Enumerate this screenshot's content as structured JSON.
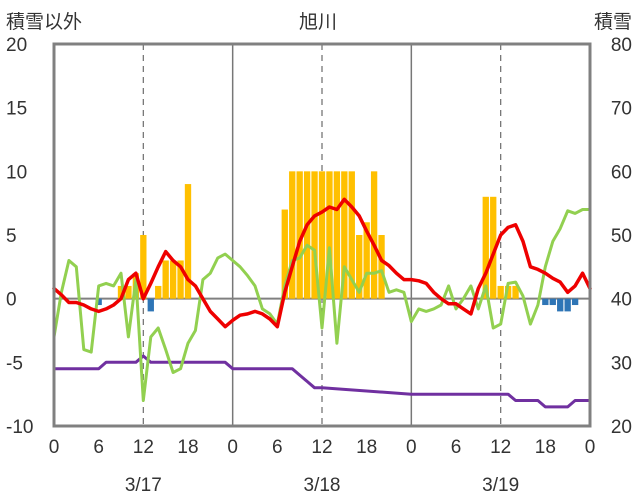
{
  "chart_data": {
    "type": "line",
    "title": "旭川",
    "left_axis_label": "積雪以外",
    "right_axis_label": "積雪",
    "left_ylim": [
      -10,
      20
    ],
    "left_yticks": [
      "20",
      "15",
      "10",
      "5",
      "0",
      "-5",
      "-10"
    ],
    "right_ylim": [
      20,
      80
    ],
    "right_yticks": [
      "80",
      "70",
      "60",
      "50",
      "40",
      "30",
      "20"
    ],
    "x_range_hours": [
      0,
      72
    ],
    "x_tick_labels": [
      "0",
      "6",
      "12",
      "18",
      "0",
      "6",
      "12",
      "18",
      "0",
      "6",
      "12",
      "18",
      "0"
    ],
    "date_labels": [
      "3/17",
      "3/18",
      "3/19"
    ],
    "grid": "dashed vertical lines at 12h of each day; solid vertical lines at day boundaries",
    "colors": {
      "bar_positive": "#FFC000",
      "bar_negative": "#2E75B6",
      "temperature_line": "#EE0000",
      "green_line": "#92D050",
      "snow_depth_line": "#7030A0",
      "frame": "#808080"
    },
    "series": [
      {
        "kind": "bar",
        "axis": "left",
        "x": [
          6,
          9,
          10,
          11,
          12,
          13,
          14,
          15,
          16,
          17,
          18,
          31,
          32,
          33,
          34,
          35,
          36,
          37,
          38,
          39,
          40,
          41,
          42,
          43,
          44,
          45,
          46,
          47,
          48,
          58,
          59,
          60,
          61,
          62,
          66,
          67,
          68,
          69,
          70
        ],
        "values": [
          -0.5,
          1,
          1,
          2,
          5,
          -1,
          1,
          3,
          3,
          3,
          9,
          7,
          10,
          10,
          10,
          10,
          10,
          10,
          10,
          10,
          10,
          5,
          6,
          10,
          5,
          0,
          0,
          0,
          0,
          8,
          8,
          1,
          1,
          1,
          -0.5,
          -0.5,
          -1,
          -1,
          -0.5
        ]
      },
      {
        "kind": "line",
        "axis": "left",
        "color_key": "temperature_line",
        "x": [
          0,
          1,
          2,
          3,
          4,
          5,
          6,
          7,
          8,
          9,
          10,
          11,
          12,
          13,
          14,
          15,
          16,
          17,
          18,
          19,
          20,
          21,
          22,
          23,
          24,
          25,
          26,
          27,
          28,
          29,
          30,
          31,
          32,
          33,
          34,
          35,
          36,
          37,
          38,
          39,
          40,
          41,
          42,
          43,
          44,
          45,
          46,
          47,
          48,
          49,
          50,
          51,
          52,
          53,
          54,
          55,
          56,
          57,
          58,
          59,
          60,
          61,
          62,
          63,
          64,
          65,
          66,
          67,
          68,
          69,
          70,
          71,
          72
        ],
        "values": [
          0.8,
          0.3,
          -0.3,
          -0.3,
          -0.5,
          -0.8,
          -1,
          -0.8,
          -0.5,
          0,
          1.5,
          2,
          0,
          1.2,
          2.5,
          3.7,
          3,
          2.5,
          1.5,
          1,
          0,
          -1,
          -1.6,
          -2.2,
          -1.7,
          -1.3,
          -1.2,
          -1,
          -1.2,
          -1.6,
          -2.2,
          0.5,
          2.5,
          4.5,
          5.8,
          6.5,
          6.8,
          7.2,
          7,
          7.8,
          7.2,
          6.5,
          5.3,
          4.2,
          3,
          2.6,
          2,
          1.5,
          1.5,
          1.4,
          1.2,
          0.5,
          0,
          -0.4,
          -0.4,
          -0.8,
          -1.2,
          0.8,
          2,
          3.5,
          5,
          5.6,
          5.8,
          4.5,
          2.5,
          2.3,
          2,
          1.6,
          1.3,
          0.5,
          1,
          2,
          0.8
        ]
      },
      {
        "kind": "line",
        "axis": "left",
        "color_key": "green_line",
        "x": [
          0,
          1,
          2,
          3,
          4,
          5,
          6,
          7,
          8,
          9,
          10,
          11,
          12,
          13,
          14,
          15,
          16,
          17,
          18,
          19,
          20,
          21,
          22,
          23,
          24,
          25,
          26,
          27,
          28,
          29,
          30,
          31,
          32,
          33,
          34,
          35,
          36,
          37,
          38,
          39,
          40,
          41,
          42,
          43,
          44,
          45,
          46,
          47,
          48,
          49,
          50,
          51,
          52,
          53,
          54,
          55,
          56,
          57,
          58,
          59,
          60,
          61,
          62,
          63,
          64,
          65,
          66,
          67,
          68,
          69,
          70,
          71,
          72
        ],
        "values": [
          -3,
          0.5,
          3,
          2.5,
          -4,
          -4.2,
          1,
          1.2,
          1,
          2,
          -3,
          1.5,
          -8,
          -3,
          -2.3,
          -4,
          -5.8,
          -5.5,
          -3.5,
          -2.5,
          1.5,
          2,
          3.2,
          3.5,
          3,
          2.5,
          1.8,
          1,
          -0.8,
          -1.2,
          -2,
          1,
          3,
          3.2,
          4.2,
          3.8,
          -2.3,
          4,
          -3.5,
          2.5,
          1.5,
          0.5,
          2,
          2,
          2.2,
          0.5,
          0.7,
          0.5,
          -1.8,
          -0.8,
          -1,
          -0.8,
          -0.5,
          1,
          -0.8,
          0,
          1,
          -0.8,
          1,
          -2.3,
          -2,
          1.2,
          1.3,
          0.2,
          -2,
          -0.5,
          2.5,
          4.5,
          5.5,
          6.9,
          6.7,
          7,
          7
        ]
      },
      {
        "kind": "line",
        "axis": "right",
        "color_key": "snow_depth_line",
        "x": [
          0,
          6,
          7,
          9,
          10,
          11,
          12,
          13,
          20,
          21,
          22,
          23,
          24,
          25,
          26,
          27,
          30,
          31,
          32,
          33,
          34,
          35,
          36,
          48,
          51,
          52,
          53,
          54,
          55,
          57,
          60,
          61,
          62,
          63,
          64,
          65,
          66,
          67,
          68,
          69,
          70,
          71,
          72
        ],
        "values": [
          29,
          29,
          30,
          30,
          30,
          30,
          31,
          30,
          30,
          30,
          30,
          30,
          29,
          29,
          29,
          29,
          29,
          29,
          29,
          28,
          27,
          26,
          26,
          25,
          25,
          25,
          25,
          25,
          25,
          25,
          25,
          25,
          24,
          24,
          24,
          24,
          23,
          23,
          23,
          23,
          24,
          24,
          24
        ]
      }
    ]
  }
}
